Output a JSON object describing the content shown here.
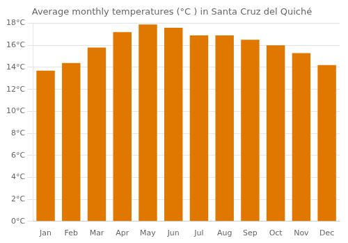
{
  "chart_data": {
    "type": "bar",
    "title": "Average monthly temperatures (°C ) in Santa Cruz del Quiché",
    "categories": [
      "Jan",
      "Feb",
      "Mar",
      "Apr",
      "May",
      "Jun",
      "Jul",
      "Aug",
      "Sep",
      "Oct",
      "Nov",
      "Dec"
    ],
    "values": [
      13.7,
      14.4,
      15.8,
      17.2,
      17.9,
      17.6,
      16.9,
      16.9,
      16.5,
      16.0,
      15.3,
      14.2
    ],
    "color": "#E07800",
    "ylim": [
      0,
      18
    ],
    "yticks": [
      {
        "value": 0,
        "label": "0°C"
      },
      {
        "value": 2,
        "label": "2°C"
      },
      {
        "value": 4,
        "label": "4°C"
      },
      {
        "value": 6,
        "label": "6°C"
      },
      {
        "value": 8,
        "label": "8°C"
      },
      {
        "value": 10,
        "label": "10°C"
      },
      {
        "value": 12,
        "label": "12°C"
      },
      {
        "value": 14,
        "label": "14°C"
      },
      {
        "value": 16,
        "label": "16°C"
      },
      {
        "value": 18,
        "label": "18°C"
      }
    ],
    "grid": true
  }
}
